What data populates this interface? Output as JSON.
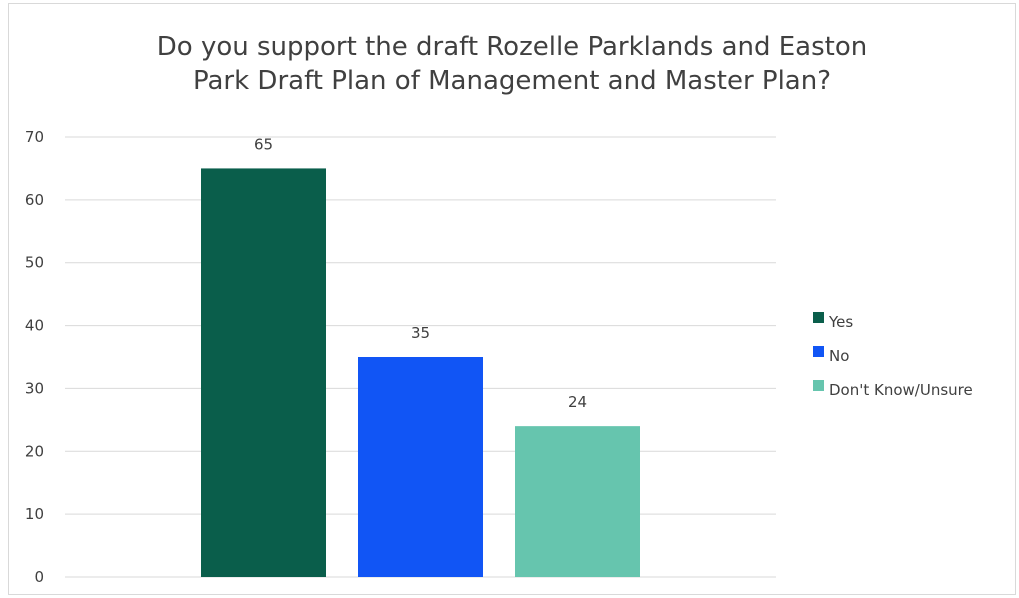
{
  "chart_data": {
    "type": "bar",
    "title_lines": [
      "Do you support the draft Rozelle Parklands and Easton",
      "Park Draft Plan of Management and Master Plan?"
    ],
    "xlabel": "",
    "ylabel": "",
    "ylim": [
      0,
      70
    ],
    "yticks": [
      0,
      10,
      20,
      30,
      40,
      50,
      60,
      70
    ],
    "grid": true,
    "legend_position": "right",
    "series": [
      {
        "name": "Yes",
        "value": 65,
        "color": "#0a5e4b"
      },
      {
        "name": "No",
        "value": 35,
        "color": "#1155f5"
      },
      {
        "name": "Don't Know/Unsure",
        "value": 24,
        "color": "#66c5ae"
      }
    ]
  }
}
